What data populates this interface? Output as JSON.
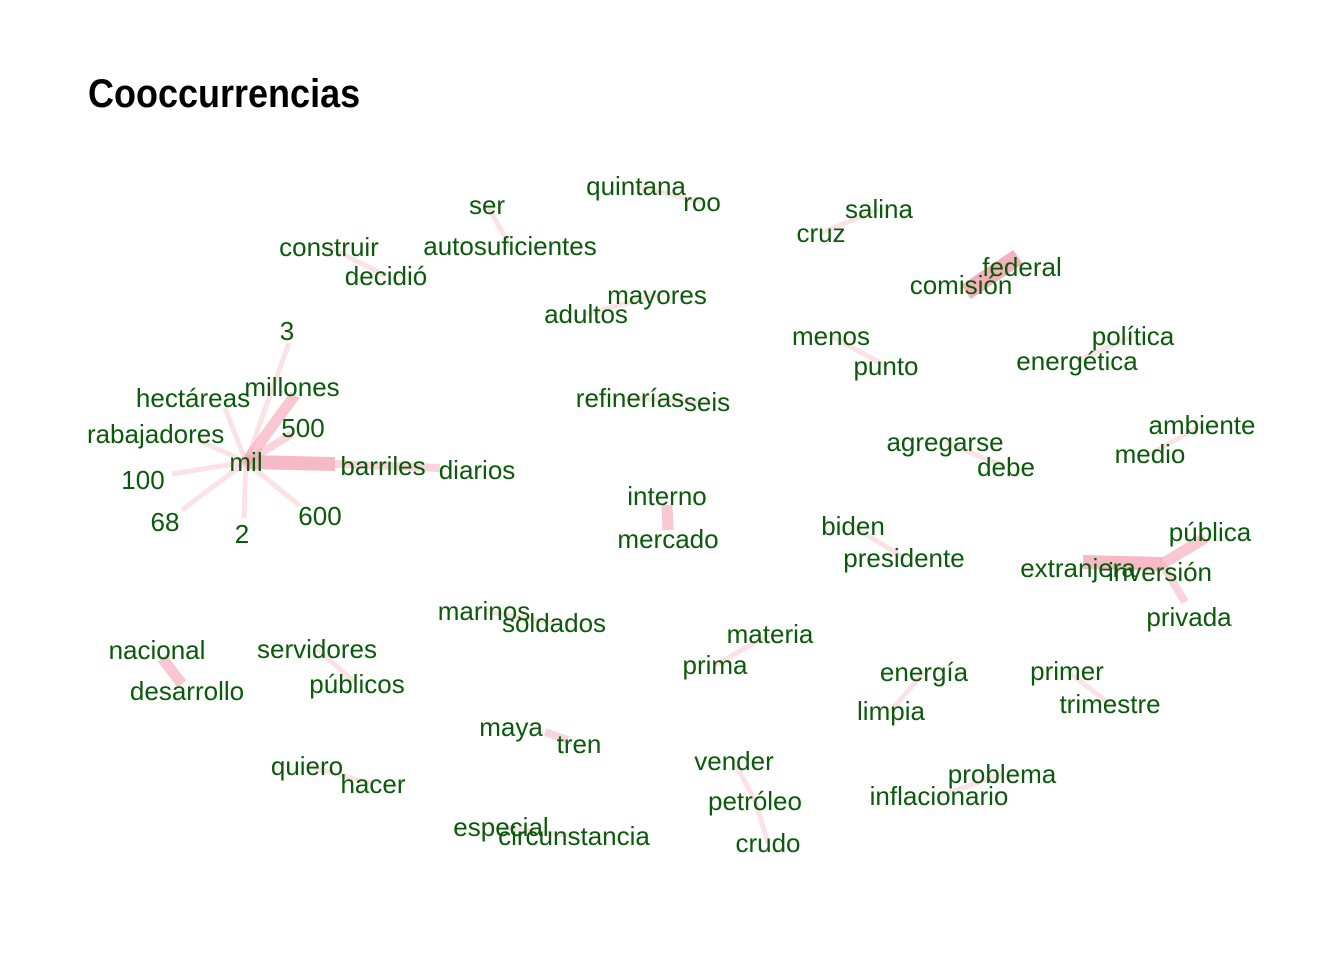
{
  "title": "Cooccurrencias",
  "colors": {
    "label": "#0b5a0b",
    "edge": "#f4a6b6",
    "background": "#ffffff"
  },
  "nodes": {
    "quintana": "quintana",
    "roo": "roo",
    "ser": "ser",
    "salina": "salina",
    "cruz": "cruz",
    "construir": "construir",
    "autosuficientes": "autosuficientes",
    "decidio": "decidió",
    "federal": "federal",
    "comision": "comisión",
    "mayores": "mayores",
    "adultos": "adultos",
    "tres": "3",
    "menos": "menos",
    "politica": "política",
    "punto": "punto",
    "energetica": "energética",
    "millones": "millones",
    "hectareas": "hectáreas",
    "refinerias": "refinerías",
    "seis": "seis",
    "quinientos": "500",
    "ambiente": "ambiente",
    "trabajadores": "trabajadores",
    "agregarse": "agregarse",
    "medio": "medio",
    "mil": "mil",
    "debe": "debe",
    "barriles": "barriles",
    "diarios": "diarios",
    "cien": "100",
    "interno": "interno",
    "seiscientos": "600",
    "sesentayocho": "68",
    "biden": "biden",
    "publica": "pública",
    "dos": "2",
    "mercado": "mercado",
    "presidente": "presidente",
    "extranjera": "extranjera",
    "inversion": "inversión",
    "marinos": "marinos",
    "privada": "privada",
    "soldados": "soldados",
    "materia": "materia",
    "nacional": "nacional",
    "servidores": "servidores",
    "prima": "prima",
    "energia": "energía",
    "primer": "primer",
    "desarrollo": "desarrollo",
    "publicos": "públicos",
    "trimestre": "trimestre",
    "limpia": "limpia",
    "maya": "maya",
    "tren": "tren",
    "vender": "vender",
    "quiero": "quiero",
    "problema": "problema",
    "hacer": "hacer",
    "petroleo": "petróleo",
    "inflacionario": "inflacionario",
    "especial": "especial",
    "circunstancia": "circunstancia",
    "crudo": "crudo"
  },
  "edges": [
    {
      "from": "comision",
      "to": "federal",
      "weight": 5
    },
    {
      "from": "mil",
      "to": "barriles",
      "weight": 4
    },
    {
      "from": "mil",
      "to": "millones",
      "weight": 3
    },
    {
      "from": "mil",
      "to": "quinientos",
      "weight": 2
    },
    {
      "from": "mil",
      "to": "tres",
      "weight": 1
    },
    {
      "from": "mil",
      "to": "hectareas",
      "weight": 1
    },
    {
      "from": "mil",
      "to": "trabajadores",
      "weight": 1
    },
    {
      "from": "mil",
      "to": "cien",
      "weight": 1
    },
    {
      "from": "mil",
      "to": "sesentayocho",
      "weight": 1
    },
    {
      "from": "mil",
      "to": "dos",
      "weight": 1
    },
    {
      "from": "mil",
      "to": "seiscientos",
      "weight": 1
    },
    {
      "from": "barriles",
      "to": "diarios",
      "weight": 2
    },
    {
      "from": "interno",
      "to": "mercado",
      "weight": 3
    },
    {
      "from": "extranjera",
      "to": "inversion",
      "weight": 4
    },
    {
      "from": "inversion",
      "to": "publica",
      "weight": 3
    },
    {
      "from": "inversion",
      "to": "privada",
      "weight": 2
    },
    {
      "from": "nacional",
      "to": "desarrollo",
      "weight": 3
    },
    {
      "from": "maya",
      "to": "tren",
      "weight": 2
    },
    {
      "from": "vender",
      "to": "petroleo",
      "weight": 1
    },
    {
      "from": "petroleo",
      "to": "crudo",
      "weight": 1
    },
    {
      "from": "materia",
      "to": "prima",
      "weight": 1
    },
    {
      "from": "energia",
      "to": "limpia",
      "weight": 1
    },
    {
      "from": "servidores",
      "to": "publicos",
      "weight": 1
    },
    {
      "from": "quintana",
      "to": "roo",
      "weight": 1
    },
    {
      "from": "salina",
      "to": "cruz",
      "weight": 1
    },
    {
      "from": "mayores",
      "to": "adultos",
      "weight": 1
    },
    {
      "from": "politica",
      "to": "energetica",
      "weight": 1
    },
    {
      "from": "medio",
      "to": "ambiente",
      "weight": 1
    },
    {
      "from": "agregarse",
      "to": "debe",
      "weight": 1
    },
    {
      "from": "biden",
      "to": "presidente",
      "weight": 1
    },
    {
      "from": "marinos",
      "to": "soldados",
      "weight": 1
    },
    {
      "from": "primer",
      "to": "trimestre",
      "weight": 1
    },
    {
      "from": "problema",
      "to": "inflacionario",
      "weight": 1
    },
    {
      "from": "quiero",
      "to": "hacer",
      "weight": 1
    },
    {
      "from": "especial",
      "to": "circunstancia",
      "weight": 1
    },
    {
      "from": "refinerias",
      "to": "seis",
      "weight": 1
    },
    {
      "from": "construir",
      "to": "decidio",
      "weight": 1
    },
    {
      "from": "autosuficientes",
      "to": "ser",
      "weight": 1
    },
    {
      "from": "menos",
      "to": "punto",
      "weight": 1
    }
  ]
}
